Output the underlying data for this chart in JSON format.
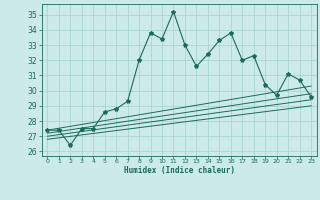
{
  "xlabel": "Humidex (Indice chaleur)",
  "bg_color": "#cceae7",
  "grid_color": "#aad4d0",
  "line_color": "#1a6b5a",
  "xlim": [
    -0.5,
    23.5
  ],
  "ylim": [
    25.7,
    35.7
  ],
  "yticks": [
    26,
    27,
    28,
    29,
    30,
    31,
    32,
    33,
    34,
    35
  ],
  "xticks": [
    0,
    1,
    2,
    3,
    4,
    5,
    6,
    7,
    8,
    9,
    10,
    11,
    12,
    13,
    14,
    15,
    16,
    17,
    18,
    19,
    20,
    21,
    22,
    23
  ],
  "main_x": [
    0,
    1,
    2,
    3,
    4,
    5,
    6,
    7,
    8,
    9,
    10,
    11,
    12,
    13,
    14,
    15,
    16,
    17,
    18,
    19,
    20,
    21,
    22,
    23
  ],
  "main_y": [
    27.4,
    27.4,
    26.4,
    27.5,
    27.5,
    28.6,
    28.8,
    29.3,
    32.0,
    33.8,
    33.4,
    35.2,
    33.0,
    31.6,
    32.4,
    33.3,
    33.8,
    32.0,
    32.3,
    30.4,
    29.7,
    31.1,
    30.7,
    29.6
  ],
  "diag_lines": [
    {
      "x": [
        0,
        23
      ],
      "y": [
        27.4,
        30.3
      ]
    },
    {
      "x": [
        0,
        23
      ],
      "y": [
        27.2,
        29.8
      ]
    },
    {
      "x": [
        0,
        23
      ],
      "y": [
        27.0,
        29.4
      ]
    },
    {
      "x": [
        0,
        23
      ],
      "y": [
        26.8,
        29.0
      ]
    }
  ]
}
